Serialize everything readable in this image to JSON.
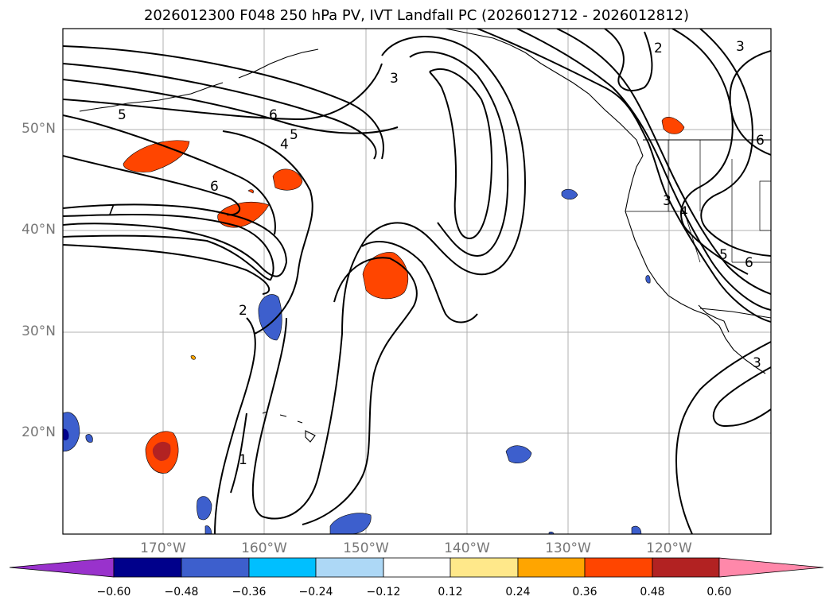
{
  "title": "2026012300 F048 250 hPa PV, IVT Landfall PC (2026012712 - 2026012812)",
  "map": {
    "lat_labels": [
      "50°N",
      "40°N",
      "30°N",
      "20°N"
    ],
    "lon_labels": [
      "170°W",
      "160°W",
      "150°W",
      "140°W",
      "130°W",
      "120°W"
    ],
    "contour_labels": [
      "1",
      "2",
      "3",
      "3",
      "3",
      "4",
      "4",
      "5",
      "5",
      "5",
      "6",
      "6",
      "6",
      "6",
      "7",
      "2",
      "3"
    ],
    "colors": {
      "contour": "#000000",
      "grid": "#b0b0b0",
      "coast": "#000000"
    }
  },
  "colorbar": {
    "ticks": [
      "−0.60",
      "−0.48",
      "−0.36",
      "−0.24",
      "−0.12",
      "0.12",
      "0.24",
      "0.36",
      "0.48",
      "0.60"
    ],
    "colors": [
      "#9932cc",
      "#00008b",
      "#3d5fcd",
      "#00bfff",
      "#add8f6",
      "#ffffff",
      "#ffe88a",
      "#ffa500",
      "#ff4500",
      "#b22222",
      "#ff88aa"
    ]
  }
}
